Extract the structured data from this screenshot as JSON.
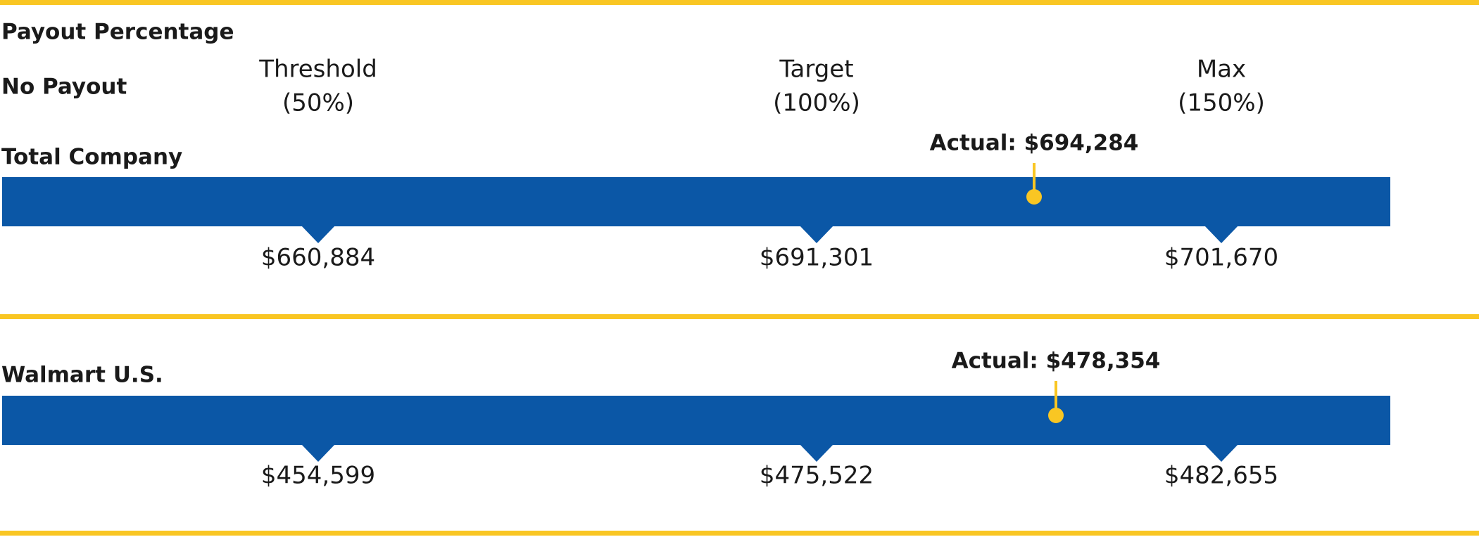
{
  "header": {
    "title": "Payout Percentage",
    "no_payout": "No Payout"
  },
  "levels": [
    {
      "label": "Threshold",
      "pct": "(50%)"
    },
    {
      "label": "Target",
      "pct": "(100%)"
    },
    {
      "label": "Max",
      "pct": "(150%)"
    }
  ],
  "sections": [
    {
      "name": "Total Company",
      "actual": "Actual: $694,284",
      "values": [
        "$660,884",
        "$691,301",
        "$701,670"
      ]
    },
    {
      "name": "Walmart U.S.",
      "actual": "Actual: $478,354",
      "values": [
        "$454,599",
        "$475,522",
        "$482,655"
      ]
    }
  ]
}
